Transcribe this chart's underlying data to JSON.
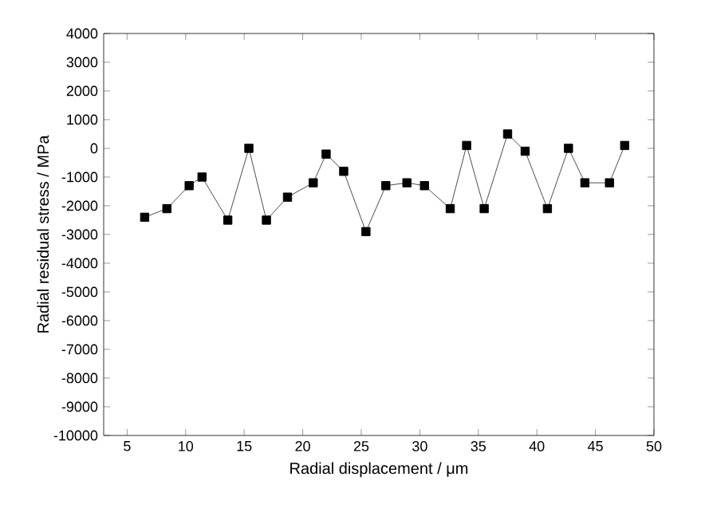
{
  "chart_data": {
    "type": "line",
    "xlabel": "Radial displacement / μm",
    "ylabel": "Radial residual stress / MPa",
    "x": [
      6.5,
      8.4,
      10.3,
      11.4,
      13.6,
      15.4,
      16.9,
      18.7,
      20.9,
      22.0,
      23.5,
      25.4,
      27.1,
      28.9,
      30.4,
      32.6,
      34.0,
      35.5,
      37.5,
      39.0,
      40.9,
      42.7,
      44.1,
      46.2,
      47.5
    ],
    "series": [
      {
        "color": "#000000",
        "values": [
          -2400,
          -2100,
          -1300,
          -1000,
          -2500,
          0,
          -2500,
          -1700,
          -1200,
          -200,
          -800,
          -2900,
          -1300,
          -1200,
          -1300,
          -2100,
          100,
          -2100,
          500,
          -100,
          -2100,
          0,
          -1200,
          -1200,
          100
        ]
      }
    ],
    "xlim": [
      3,
      50
    ],
    "ylim": [
      -10000,
      4000
    ],
    "xticks": [
      5,
      10,
      15,
      20,
      25,
      30,
      35,
      40,
      45,
      50
    ],
    "yticks": [
      -10000,
      -9000,
      -8000,
      -7000,
      -6000,
      -5000,
      -4000,
      -3000,
      -2000,
      -1000,
      0,
      1000,
      2000,
      3000,
      4000
    ],
    "marker": "square",
    "line_style": "solid",
    "grid": false
  }
}
